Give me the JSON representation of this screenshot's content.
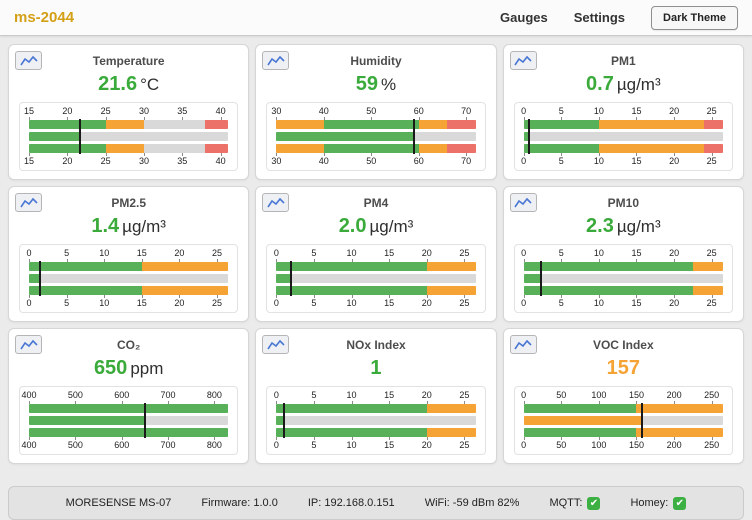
{
  "header": {
    "title": "ms-2044",
    "nav": {
      "gauges": "Gauges",
      "settings": "Settings",
      "theme_button": "Dark Theme"
    }
  },
  "colors": {
    "brand": "#d4a017",
    "green": "#58b158",
    "orange": "#f5a335",
    "red": "#ec7168",
    "gray": "#d9d9d9",
    "value_green": "#3aaa3a",
    "value_orange": "#f5a335",
    "icon_blue": "#4a77d4",
    "marker": "#1a1a1a"
  },
  "gauges": [
    {
      "id": "temperature",
      "title": "Temperature",
      "value_display": "21.6",
      "unit": "°C",
      "value": 21.6,
      "value_color": "green",
      "min": 15,
      "max": 41,
      "ticks": [
        15,
        20,
        25,
        30,
        35,
        40
      ],
      "zones": [
        {
          "from": 15,
          "to": 25,
          "color": "green"
        },
        {
          "from": 25,
          "to": 30,
          "color": "orange"
        },
        {
          "from": 38,
          "to": 41,
          "color": "red"
        }
      ]
    },
    {
      "id": "humidity",
      "title": "Humidity",
      "value_display": "59",
      "unit": "%",
      "value": 59,
      "value_color": "green",
      "min": 30,
      "max": 72,
      "ticks": [
        30,
        40,
        50,
        60,
        70
      ],
      "zones": [
        {
          "from": 30,
          "to": 40,
          "color": "orange"
        },
        {
          "from": 40,
          "to": 60,
          "color": "green"
        },
        {
          "from": 60,
          "to": 66,
          "color": "orange"
        },
        {
          "from": 66,
          "to": 72,
          "color": "red"
        }
      ]
    },
    {
      "id": "pm1",
      "title": "PM1",
      "value_display": "0.7",
      "unit": "µg/m³",
      "value": 0.7,
      "value_color": "green",
      "min": 0,
      "max": 26.5,
      "ticks": [
        0,
        5,
        10,
        15,
        20,
        25
      ],
      "zones": [
        {
          "from": 0,
          "to": 10,
          "color": "green"
        },
        {
          "from": 10,
          "to": 24,
          "color": "orange"
        },
        {
          "from": 24,
          "to": 26.5,
          "color": "red"
        }
      ]
    },
    {
      "id": "pm2_5",
      "title": "PM2.5",
      "value_display": "1.4",
      "unit": "µg/m³",
      "value": 1.4,
      "value_color": "green",
      "min": 0,
      "max": 26.5,
      "ticks": [
        0,
        5,
        10,
        15,
        20,
        25
      ],
      "zones": [
        {
          "from": 0,
          "to": 15,
          "color": "green"
        },
        {
          "from": 15,
          "to": 26.5,
          "color": "orange"
        }
      ]
    },
    {
      "id": "pm4",
      "title": "PM4",
      "value_display": "2.0",
      "unit": "µg/m³",
      "value": 2.0,
      "value_color": "green",
      "min": 0,
      "max": 26.5,
      "ticks": [
        0,
        5,
        10,
        15,
        20,
        25
      ],
      "zones": [
        {
          "from": 0,
          "to": 20,
          "color": "green"
        },
        {
          "from": 20,
          "to": 26.5,
          "color": "orange"
        }
      ]
    },
    {
      "id": "pm10",
      "title": "PM10",
      "value_display": "2.3",
      "unit": "µg/m³",
      "value": 2.3,
      "value_color": "green",
      "min": 0,
      "max": 26.5,
      "ticks": [
        0,
        5,
        10,
        15,
        20,
        25
      ],
      "zones": [
        {
          "from": 0,
          "to": 22.5,
          "color": "green"
        },
        {
          "from": 22.5,
          "to": 26.5,
          "color": "orange"
        }
      ]
    },
    {
      "id": "co2",
      "title": "CO₂",
      "value_display": "650",
      "unit": "ppm",
      "value": 650,
      "value_color": "green",
      "min": 400,
      "max": 830,
      "ticks": [
        400,
        500,
        600,
        700,
        800
      ],
      "zones": [
        {
          "from": 400,
          "to": 830,
          "color": "green"
        }
      ]
    },
    {
      "id": "nox",
      "title": "NOx Index",
      "value_display": "1",
      "unit": "",
      "value": 1,
      "value_color": "green",
      "min": 0,
      "max": 26.5,
      "ticks": [
        0,
        5,
        10,
        15,
        20,
        25
      ],
      "zones": [
        {
          "from": 0,
          "to": 20,
          "color": "green"
        },
        {
          "from": 20,
          "to": 26.5,
          "color": "orange"
        }
      ]
    },
    {
      "id": "voc",
      "title": "VOC Index",
      "value_display": "157",
      "unit": "",
      "value": 157,
      "value_color": "orange",
      "min": 0,
      "max": 265,
      "ticks": [
        0,
        50,
        100,
        150,
        200,
        250
      ],
      "zones": [
        {
          "from": 0,
          "to": 150,
          "color": "green"
        },
        {
          "from": 150,
          "to": 265,
          "color": "orange"
        }
      ]
    }
  ],
  "footer": {
    "device": "MORESENSE MS-07",
    "firmware": "Firmware: 1.0.0",
    "ip": "IP: 192.168.0.151",
    "wifi": "WiFi: -59 dBm 82%",
    "mqtt_label": "MQTT:",
    "homey_label": "Homey:"
  }
}
